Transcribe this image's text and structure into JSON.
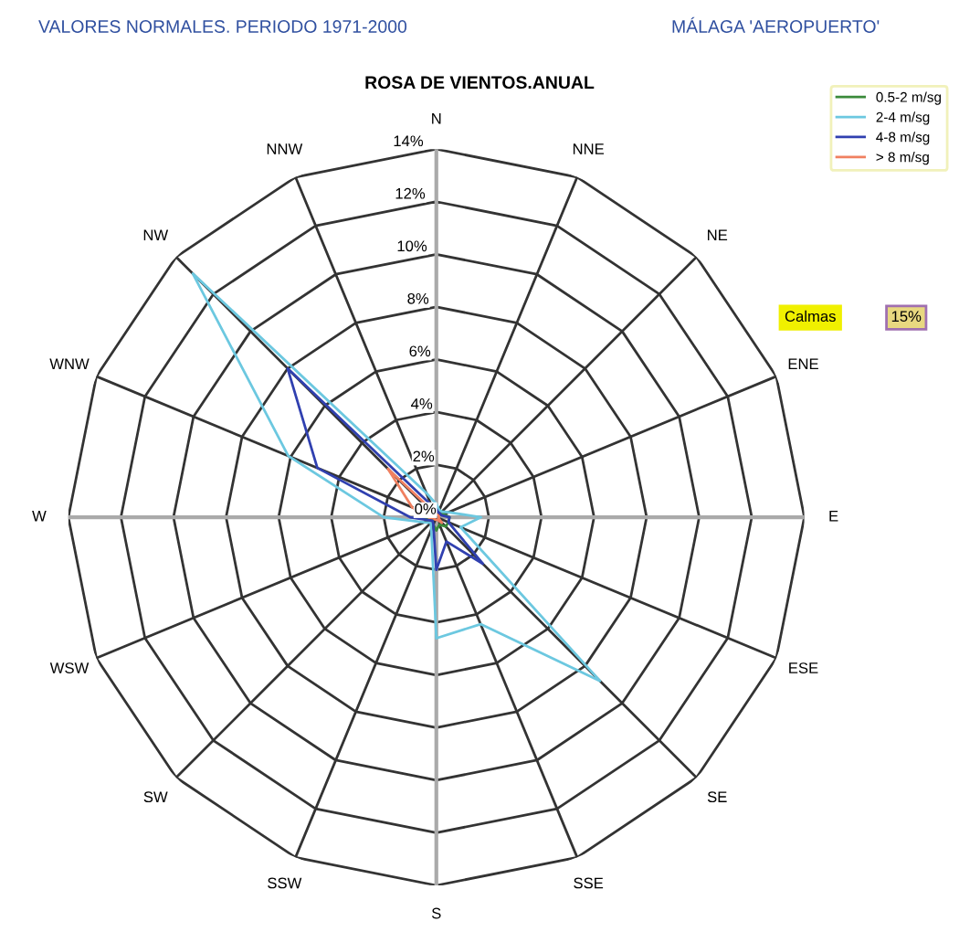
{
  "chart_data": {
    "type": "radar",
    "title": "ROSA DE VIENTOS.ANUAL",
    "subtitle": "VALORES NORMALES. PERIODO 1971-2000      MÁLAGA 'AEROPUERTO'",
    "annotations": [
      "Calmas",
      "15%"
    ],
    "categories": [
      "N",
      "NNE",
      "NE",
      "ENE",
      "E",
      "ESE",
      "SE",
      "SSE",
      "S",
      "SSW",
      "SW",
      "WSW",
      "W",
      "WNW",
      "NW",
      "NNW"
    ],
    "ylim": [
      0,
      14
    ],
    "yticks": [
      {
        "value": 0,
        "label": "0%"
      },
      {
        "value": 2,
        "label": "2%"
      },
      {
        "value": 4,
        "label": "4%"
      },
      {
        "value": 6,
        "label": "6%"
      },
      {
        "value": 8,
        "label": "8%"
      },
      {
        "value": 10,
        "label": "10%"
      },
      {
        "value": 12,
        "label": "12%"
      },
      {
        "value": 14,
        "label": "14%"
      }
    ],
    "grid": true,
    "legend": "top right",
    "marker": "none",
    "line_style": "solid",
    "series": [
      {
        "name": "0.5-2 m/sg",
        "color": "#3a8a3a",
        "values": [
          0.3,
          0.3,
          0.3,
          0.3,
          0.5,
          0.5,
          0.5,
          0.3,
          0.5,
          0.3,
          0.3,
          0.3,
          0.5,
          0.5,
          0.5,
          0.3
        ]
      },
      {
        "name": "2-4 m/sg",
        "color": "#6cc8e0",
        "values": [
          0.5,
          0.3,
          0.3,
          0.5,
          1.7,
          1.0,
          8.8,
          4.4,
          4.6,
          0.5,
          0.3,
          0.5,
          2.0,
          6.1,
          13.1,
          1.0
        ]
      },
      {
        "name": "4-8 m/sg",
        "color": "#3040b0",
        "values": [
          0.3,
          0.2,
          0.2,
          0.2,
          0.5,
          0.5,
          2.5,
          1.0,
          2.0,
          0.3,
          0.2,
          0.3,
          1.0,
          4.9,
          8.0,
          0.5
        ]
      },
      {
        "name": "> 8 m/sg",
        "color": "#f08060",
        "values": [
          0.1,
          0.1,
          0.1,
          0.1,
          0.1,
          0.1,
          0.3,
          0.1,
          0.1,
          0.1,
          0.1,
          0.1,
          0.3,
          1.0,
          2.6,
          0.2
        ]
      }
    ]
  }
}
